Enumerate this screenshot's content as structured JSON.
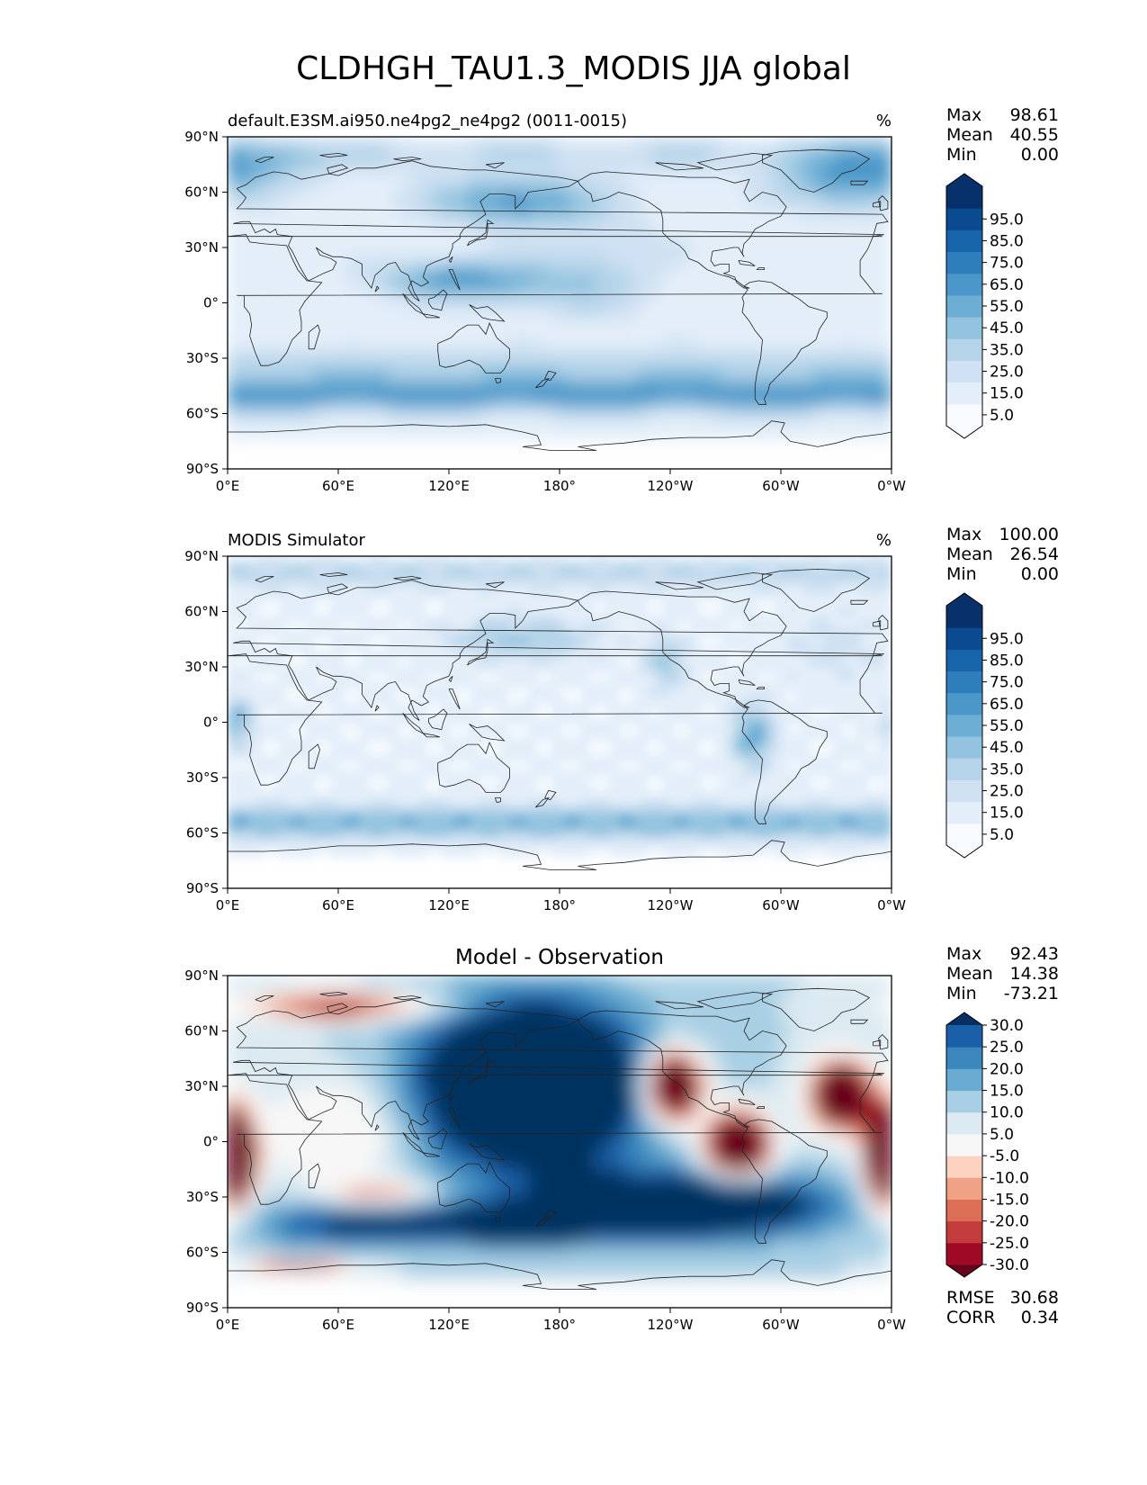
{
  "title": "CLDHGH_TAU1.3_MODIS JJA global",
  "colors": {
    "blues": [
      "#f7fbff",
      "#e3eef9",
      "#cfe1f2",
      "#b5d4e9",
      "#93c3df",
      "#6daed5",
      "#4b97c9",
      "#2f7ebc",
      "#1864aa",
      "#0a4a90",
      "#08306b"
    ],
    "diff": [
      "#67001f",
      "#9e0a26",
      "#c43b3b",
      "#dc6e57",
      "#f0a285",
      "#fbd3c0",
      "#f7f7f7",
      "#dbeaf2",
      "#a8cfe4",
      "#6aacd1",
      "#3a88be",
      "#1a60a8",
      "#053061"
    ],
    "coastline": "#222222"
  },
  "chart_data": [
    {
      "type": "heatmap",
      "id": "test",
      "title_left": "default.E3SM.ai950.ne4pg2_ne4pg2 (0011-0015)",
      "units": "%",
      "stats": [
        {
          "label": "Max",
          "value": "98.61"
        },
        {
          "label": "Mean",
          "value": "40.55"
        },
        {
          "label": "Min",
          "value": "0.00"
        }
      ],
      "x_ticks": [
        "0°E",
        "60°E",
        "120°E",
        "180°",
        "120°W",
        "60°W",
        "0°W"
      ],
      "y_ticks": [
        "90°N",
        "60°N",
        "30°N",
        "0°",
        "30°S",
        "60°S",
        "90°S"
      ],
      "xlim": [
        0,
        360
      ],
      "ylim": [
        -90,
        90
      ],
      "colorbar_levels": [
        0,
        10,
        20,
        30,
        40,
        50,
        60,
        70,
        80,
        90,
        100
      ],
      "colorbar_labels": [
        "5.0",
        "15.0",
        "25.0",
        "35.0",
        "45.0",
        "55.0",
        "65.0",
        "75.0",
        "85.0",
        "95.0"
      ]
    },
    {
      "type": "heatmap",
      "id": "ref",
      "title_left": "MODIS Simulator",
      "units": "%",
      "stats": [
        {
          "label": "Max",
          "value": "100.00"
        },
        {
          "label": "Mean",
          "value": "26.54"
        },
        {
          "label": "Min",
          "value": "0.00"
        }
      ],
      "x_ticks": [
        "0°E",
        "60°E",
        "120°E",
        "180°",
        "120°W",
        "60°W",
        "0°W"
      ],
      "y_ticks": [
        "90°N",
        "60°N",
        "30°N",
        "0°",
        "30°S",
        "60°S",
        "90°S"
      ],
      "xlim": [
        0,
        360
      ],
      "ylim": [
        -90,
        90
      ],
      "colorbar_levels": [
        0,
        10,
        20,
        30,
        40,
        50,
        60,
        70,
        80,
        90,
        100
      ],
      "colorbar_labels": [
        "5.0",
        "15.0",
        "25.0",
        "35.0",
        "45.0",
        "55.0",
        "65.0",
        "75.0",
        "85.0",
        "95.0"
      ]
    },
    {
      "type": "heatmap",
      "id": "diff",
      "title_center": "Model - Observation",
      "stats": [
        {
          "label": "Max",
          "value": "92.43"
        },
        {
          "label": "Mean",
          "value": "14.38"
        },
        {
          "label": "Min",
          "value": "-73.21"
        }
      ],
      "extra_stats": [
        {
          "label": "RMSE",
          "value": "30.68"
        },
        {
          "label": "CORR",
          "value": "0.34"
        }
      ],
      "x_ticks": [
        "0°E",
        "60°E",
        "120°E",
        "180°",
        "120°W",
        "60°W",
        "0°W"
      ],
      "y_ticks": [
        "90°N",
        "60°N",
        "30°N",
        "0°",
        "30°S",
        "60°S",
        "90°S"
      ],
      "xlim": [
        0,
        360
      ],
      "ylim": [
        -90,
        90
      ],
      "colorbar_labels": [
        "-30.0",
        "-25.0",
        "-20.0",
        "-15.0",
        "-10.0",
        "-5.0",
        "5.0",
        "10.0",
        "15.0",
        "20.0",
        "25.0",
        "30.0"
      ]
    }
  ]
}
